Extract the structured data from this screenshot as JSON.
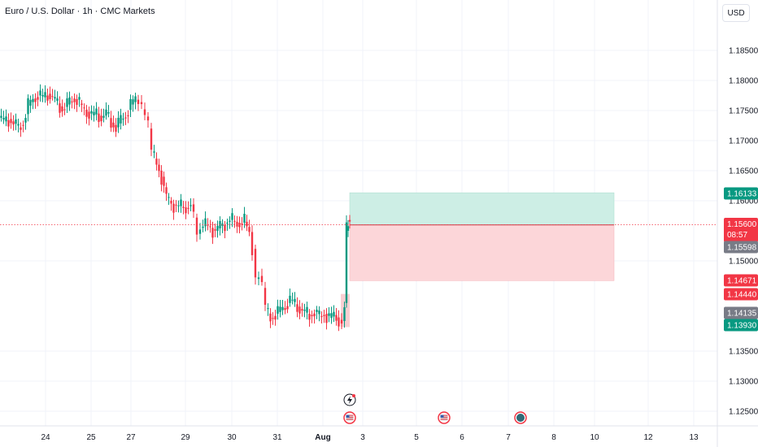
{
  "header": {
    "symbol_title": "Euro / U.S. Dollar · 1h · CMC Markets",
    "currency_button": "USD"
  },
  "colors": {
    "up": "#089981",
    "down": "#f23645",
    "profit_zone": "#cdeee5",
    "loss_zone": "#fcd6d9",
    "entry_line": "#f23645",
    "tag_gray": "#787b86"
  },
  "chart_data": {
    "type": "candlestick",
    "x_ticks": [
      "24",
      "25",
      "27",
      "29",
      "30",
      "31",
      "Aug",
      "3",
      "5",
      "6",
      "7",
      "8",
      "10",
      "12",
      "13"
    ],
    "y_ticks": [
      "1.18500",
      "1.18000",
      "1.17500",
      "1.17000",
      "1.16500",
      "1.16000",
      "1.15000",
      "1.13500",
      "1.13000",
      "1.12500"
    ],
    "ylim": [
      1.122,
      1.19
    ],
    "current_price": 1.156,
    "countdown": "08:57",
    "price_tags": [
      {
        "value": 1.16133,
        "label": "1.16133",
        "color": "#089981"
      },
      {
        "value": 1.156,
        "label": "1.15600",
        "color": "#f23645",
        "sub": "08:57"
      },
      {
        "value": 1.15598,
        "label": "1.15598",
        "color": "#787b86"
      },
      {
        "value": 1.14671,
        "label": "1.14671",
        "color": "#f23645"
      },
      {
        "value": 1.1444,
        "label": "1.14440",
        "color": "#f23645"
      },
      {
        "value": 1.14135,
        "label": "1.14135",
        "color": "#787b86"
      },
      {
        "value": 1.1393,
        "label": "1.13930",
        "color": "#089981"
      }
    ],
    "position": {
      "entry": 1.15598,
      "target": 1.16133,
      "stop": 1.14671
    },
    "path_points": [
      [
        0,
        1.1738
      ],
      [
        6,
        1.1732
      ],
      [
        12,
        1.1736
      ],
      [
        18,
        1.1728
      ],
      [
        24,
        1.1722
      ],
      [
        30,
        1.173
      ],
      [
        36,
        1.1758
      ],
      [
        42,
        1.177
      ],
      [
        48,
        1.1775
      ],
      [
        54,
        1.1772
      ],
      [
        60,
        1.1778
      ],
      [
        66,
        1.177
      ],
      [
        72,
        1.1762
      ],
      [
        78,
        1.1752
      ],
      [
        84,
        1.176
      ],
      [
        90,
        1.177
      ],
      [
        96,
        1.1768
      ],
      [
        102,
        1.1755
      ],
      [
        108,
        1.1748
      ],
      [
        114,
        1.1742
      ],
      [
        120,
        1.1745
      ],
      [
        126,
        1.1738
      ],
      [
        132,
        1.1745
      ],
      [
        138,
        1.173
      ],
      [
        144,
        1.1722
      ],
      [
        150,
        1.1735
      ],
      [
        156,
        1.1742
      ],
      [
        162,
        1.176
      ],
      [
        168,
        1.1768
      ],
      [
        172,
        1.1764
      ],
      [
        176,
        1.1752
      ],
      [
        180,
        1.174
      ],
      [
        184,
        1.172
      ],
      [
        188,
        1.168
      ],
      [
        194,
        1.166
      ],
      [
        200,
        1.164
      ],
      [
        206,
        1.1605
      ],
      [
        212,
        1.1595
      ],
      [
        218,
        1.1592
      ],
      [
        224,
        1.159
      ],
      [
        230,
        1.1588
      ],
      [
        236,
        1.1594
      ],
      [
        240,
        1.1572
      ],
      [
        244,
        1.1545
      ],
      [
        248,
        1.1555
      ],
      [
        254,
        1.156
      ],
      [
        260,
        1.1555
      ],
      [
        266,
        1.155
      ],
      [
        272,
        1.1558
      ],
      [
        278,
        1.1562
      ],
      [
        284,
        1.1568
      ],
      [
        290,
        1.1565
      ],
      [
        296,
        1.1562
      ],
      [
        302,
        1.1565
      ],
      [
        308,
        1.1548
      ],
      [
        312,
        1.152
      ],
      [
        316,
        1.147
      ],
      [
        320,
        1.1475
      ],
      [
        324,
        1.1455
      ],
      [
        328,
        1.142
      ],
      [
        334,
        1.1405
      ],
      [
        340,
        1.1412
      ],
      [
        346,
        1.1418
      ],
      [
        352,
        1.1425
      ],
      [
        358,
        1.1435
      ],
      [
        364,
        1.1428
      ],
      [
        370,
        1.142
      ],
      [
        376,
        1.1414
      ],
      [
        382,
        1.141
      ],
      [
        388,
        1.1415
      ],
      [
        394,
        1.1408
      ],
      [
        400,
        1.1412
      ],
      [
        406,
        1.1405
      ],
      [
        412,
        1.141
      ],
      [
        418,
        1.1402
      ],
      [
        422,
        1.14
      ],
      [
        425,
        1.143
      ],
      [
        427,
        1.155
      ],
      [
        429,
        1.1568
      ],
      [
        431,
        1.1562
      ]
    ],
    "events": [
      {
        "x_index": "Aug",
        "kind": "flash-event"
      },
      {
        "x_index": "Aug",
        "kind": "us-flag"
      },
      {
        "x_index": "5-6",
        "kind": "us-flag"
      },
      {
        "x_index": "7",
        "kind": "globe"
      }
    ]
  }
}
